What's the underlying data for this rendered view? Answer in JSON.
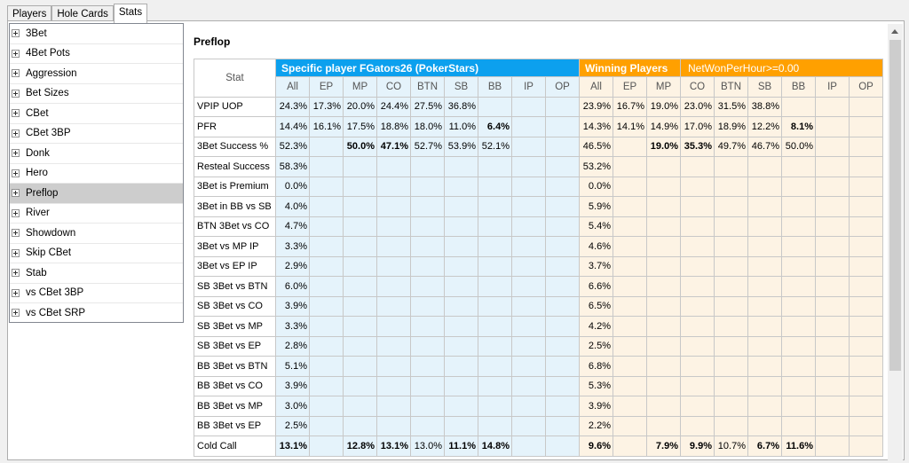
{
  "tabs": [
    "Players",
    "Hole Cards",
    "Stats"
  ],
  "tree": [
    "3Bet",
    "4Bet Pots",
    "Aggression",
    "Bet Sizes",
    "CBet",
    "CBet 3BP",
    "Donk",
    "Hero",
    "Preflop",
    "River",
    "Showdown",
    "Skip CBet",
    "Stab",
    "vs CBet 3BP",
    "vs CBet SRP"
  ],
  "selected_tree_item": "Preflop",
  "section_title": "Preflop",
  "table": {
    "stat_header": "Stat",
    "group1": "Specific player FGators26 (PokerStars)",
    "group2": "Winning Players",
    "group2_filter": "NetWonPerHour>=0.00",
    "columns": [
      "All",
      "EP",
      "MP",
      "CO",
      "BTN",
      "SB",
      "BB",
      "IP",
      "OP"
    ],
    "rows": [
      {
        "stat": "VPIP UOP",
        "p": [
          "24.3%",
          "17.3%",
          "20.0%",
          "24.4%",
          "27.5%",
          "36.8%",
          "",
          "",
          ""
        ],
        "pb": [],
        "w": [
          "23.9%",
          "16.7%",
          "19.0%",
          "23.0%",
          "31.5%",
          "38.8%",
          "",
          "",
          ""
        ],
        "wb": []
      },
      {
        "stat": "PFR",
        "p": [
          "14.4%",
          "16.1%",
          "17.5%",
          "18.8%",
          "18.0%",
          "11.0%",
          "6.4%",
          "",
          ""
        ],
        "pb": [
          6
        ],
        "w": [
          "14.3%",
          "14.1%",
          "14.9%",
          "17.0%",
          "18.9%",
          "12.2%",
          "8.1%",
          "",
          ""
        ],
        "wb": [
          6
        ]
      },
      {
        "stat": "3Bet Success %",
        "p": [
          "52.3%",
          "",
          "50.0%",
          "47.1%",
          "52.7%",
          "53.9%",
          "52.1%",
          "",
          ""
        ],
        "pb": [
          2,
          3
        ],
        "w": [
          "46.5%",
          "",
          "19.0%",
          "35.3%",
          "49.7%",
          "46.7%",
          "50.0%",
          "",
          ""
        ],
        "wb": [
          2,
          3
        ]
      },
      {
        "stat": "Resteal Success",
        "p": [
          "58.3%",
          "",
          "",
          "",
          "",
          "",
          "",
          "",
          ""
        ],
        "pb": [],
        "w": [
          "53.2%",
          "",
          "",
          "",
          "",
          "",
          "",
          "",
          ""
        ],
        "wb": []
      },
      {
        "stat": "3Bet is Premium",
        "p": [
          "0.0%",
          "",
          "",
          "",
          "",
          "",
          "",
          "",
          ""
        ],
        "pb": [],
        "w": [
          "0.0%",
          "",
          "",
          "",
          "",
          "",
          "",
          "",
          ""
        ],
        "wb": []
      },
      {
        "stat": "3Bet in BB vs SB",
        "p": [
          "4.0%",
          "",
          "",
          "",
          "",
          "",
          "",
          "",
          ""
        ],
        "pb": [],
        "w": [
          "5.9%",
          "",
          "",
          "",
          "",
          "",
          "",
          "",
          ""
        ],
        "wb": []
      },
      {
        "stat": "BTN 3Bet vs CO",
        "p": [
          "4.7%",
          "",
          "",
          "",
          "",
          "",
          "",
          "",
          ""
        ],
        "pb": [],
        "w": [
          "5.4%",
          "",
          "",
          "",
          "",
          "",
          "",
          "",
          ""
        ],
        "wb": []
      },
      {
        "stat": "3Bet vs MP IP",
        "p": [
          "3.3%",
          "",
          "",
          "",
          "",
          "",
          "",
          "",
          ""
        ],
        "pb": [],
        "w": [
          "4.6%",
          "",
          "",
          "",
          "",
          "",
          "",
          "",
          ""
        ],
        "wb": []
      },
      {
        "stat": "3Bet vs EP IP",
        "p": [
          "2.9%",
          "",
          "",
          "",
          "",
          "",
          "",
          "",
          ""
        ],
        "pb": [],
        "w": [
          "3.7%",
          "",
          "",
          "",
          "",
          "",
          "",
          "",
          ""
        ],
        "wb": []
      },
      {
        "stat": "SB 3Bet vs BTN",
        "p": [
          "6.0%",
          "",
          "",
          "",
          "",
          "",
          "",
          "",
          ""
        ],
        "pb": [],
        "w": [
          "6.6%",
          "",
          "",
          "",
          "",
          "",
          "",
          "",
          ""
        ],
        "wb": []
      },
      {
        "stat": "SB 3Bet vs CO",
        "p": [
          "3.9%",
          "",
          "",
          "",
          "",
          "",
          "",
          "",
          ""
        ],
        "pb": [],
        "w": [
          "6.5%",
          "",
          "",
          "",
          "",
          "",
          "",
          "",
          ""
        ],
        "wb": []
      },
      {
        "stat": "SB 3Bet vs MP",
        "p": [
          "3.3%",
          "",
          "",
          "",
          "",
          "",
          "",
          "",
          ""
        ],
        "pb": [],
        "w": [
          "4.2%",
          "",
          "",
          "",
          "",
          "",
          "",
          "",
          ""
        ],
        "wb": []
      },
      {
        "stat": "SB 3Bet vs EP",
        "p": [
          "2.8%",
          "",
          "",
          "",
          "",
          "",
          "",
          "",
          ""
        ],
        "pb": [],
        "w": [
          "2.5%",
          "",
          "",
          "",
          "",
          "",
          "",
          "",
          ""
        ],
        "wb": []
      },
      {
        "stat": "BB 3Bet vs BTN",
        "p": [
          "5.1%",
          "",
          "",
          "",
          "",
          "",
          "",
          "",
          ""
        ],
        "pb": [],
        "w": [
          "6.8%",
          "",
          "",
          "",
          "",
          "",
          "",
          "",
          ""
        ],
        "wb": []
      },
      {
        "stat": "BB 3Bet vs CO",
        "p": [
          "3.9%",
          "",
          "",
          "",
          "",
          "",
          "",
          "",
          ""
        ],
        "pb": [],
        "w": [
          "5.3%",
          "",
          "",
          "",
          "",
          "",
          "",
          "",
          ""
        ],
        "wb": []
      },
      {
        "stat": "BB 3Bet vs MP",
        "p": [
          "3.0%",
          "",
          "",
          "",
          "",
          "",
          "",
          "",
          ""
        ],
        "pb": [],
        "w": [
          "3.9%",
          "",
          "",
          "",
          "",
          "",
          "",
          "",
          ""
        ],
        "wb": []
      },
      {
        "stat": "BB 3Bet vs EP",
        "p": [
          "2.5%",
          "",
          "",
          "",
          "",
          "",
          "",
          "",
          ""
        ],
        "pb": [],
        "w": [
          "2.2%",
          "",
          "",
          "",
          "",
          "",
          "",
          "",
          ""
        ],
        "wb": []
      },
      {
        "stat": "Cold Call",
        "p": [
          "13.1%",
          "",
          "12.8%",
          "13.1%",
          "13.0%",
          "11.1%",
          "14.8%",
          "",
          ""
        ],
        "pb": [
          0,
          2,
          3,
          5,
          6
        ],
        "w": [
          "9.6%",
          "",
          "7.9%",
          "9.9%",
          "10.7%",
          "6.7%",
          "11.6%",
          "",
          ""
        ],
        "wb": [
          0,
          2,
          3,
          5,
          6
        ]
      }
    ]
  },
  "colors": {
    "blue_header": "#0ca0ee",
    "orange_header": "#ffa000",
    "blue_cell": "#e5f3fb",
    "orange_cell": "#fdf3e4",
    "selected_row": "#cdcdcd"
  }
}
